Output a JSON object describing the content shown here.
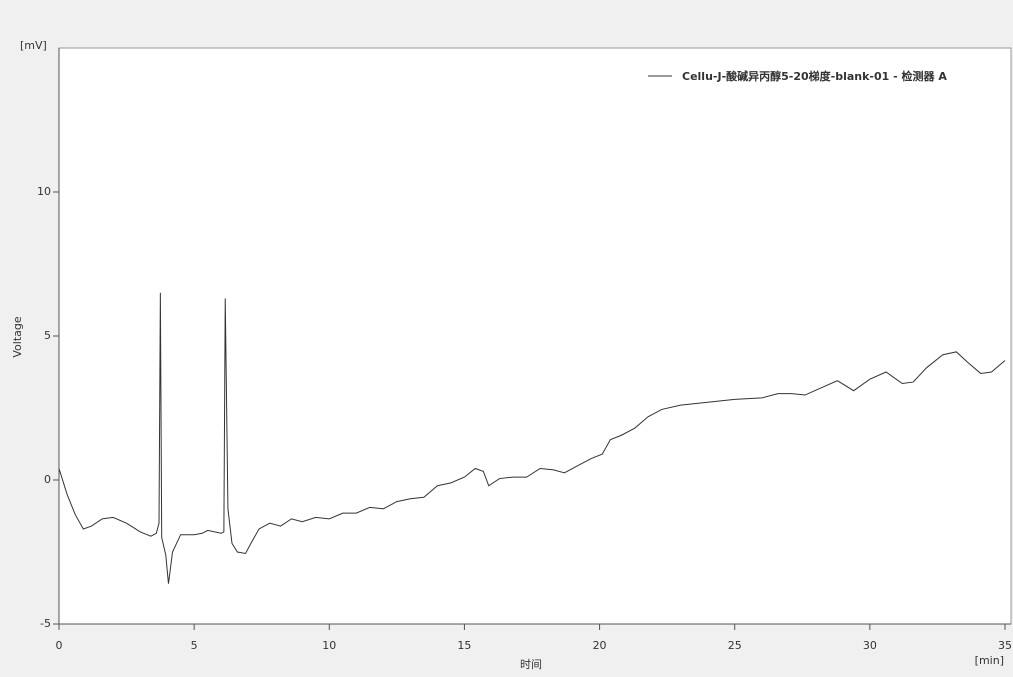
{
  "chart_data": {
    "type": "line",
    "y_unit": "[mV]",
    "x_unit": "[min]",
    "x_label": "时间",
    "y_label": "Voltage",
    "x": [
      0,
      0.3,
      0.6,
      0.9,
      1.2,
      1.6,
      2.0,
      2.5,
      3.0,
      3.4,
      3.6,
      3.7,
      3.75,
      3.8,
      3.95,
      4.05,
      4.2,
      4.5,
      5.0,
      5.3,
      5.5,
      6.0,
      6.1,
      6.15,
      6.25,
      6.4,
      6.6,
      6.9,
      7.1,
      7.4,
      7.8,
      8.2,
      8.6,
      9.0,
      9.5,
      10.0,
      10.5,
      11.0,
      11.5,
      12.0,
      12.5,
      13.0,
      13.5,
      14.0,
      14.5,
      15.0,
      15.4,
      15.7,
      15.9,
      16.3,
      16.8,
      17.3,
      17.8,
      18.3,
      18.7,
      19.2,
      19.7,
      20.1,
      20.4,
      20.8,
      21.3,
      21.8,
      22.3,
      23,
      24,
      25,
      26,
      26.6,
      27.1,
      27.6,
      28.2,
      28.8,
      29.4,
      30.0,
      30.6,
      31.2,
      31.6,
      32.1,
      32.7,
      33.2,
      33.6,
      34.1,
      34.5,
      35
    ],
    "series": [
      {
        "name": "Cellu-J-酸碱异丙醇5-20梯度-blank-01 - 检测器 A",
        "color": "#333333",
        "values": [
          0.4,
          -0.5,
          -1.2,
          -1.7,
          -1.6,
          -1.35,
          -1.3,
          -1.5,
          -1.8,
          -1.95,
          -1.85,
          -1.5,
          6.5,
          -2.0,
          -2.6,
          -3.6,
          -2.5,
          -1.9,
          -1.9,
          -1.85,
          -1.75,
          -1.85,
          -1.8,
          6.3,
          -1.0,
          -2.2,
          -2.5,
          -2.55,
          -2.2,
          -1.7,
          -1.5,
          -1.6,
          -1.35,
          -1.45,
          -1.3,
          -1.35,
          -1.15,
          -1.15,
          -0.95,
          -1.0,
          -0.75,
          -0.65,
          -0.6,
          -0.2,
          -0.1,
          0.1,
          0.4,
          0.3,
          -0.2,
          0.05,
          0.1,
          0.1,
          0.4,
          0.35,
          0.25,
          0.5,
          0.75,
          0.9,
          1.4,
          1.55,
          1.8,
          2.2,
          2.45,
          2.6,
          2.7,
          2.8,
          2.85,
          3.0,
          3.0,
          2.95,
          3.2,
          3.45,
          3.1,
          3.5,
          3.75,
          3.35,
          3.4,
          3.9,
          4.35,
          4.45,
          4.1,
          3.7,
          3.75,
          4.15
        ]
      }
    ],
    "xlim": [
      0,
      35
    ],
    "xticks": [
      0,
      5,
      10,
      15,
      20,
      25,
      30,
      35
    ],
    "ylim": [
      -5,
      15
    ],
    "yticks": [
      -5,
      0,
      5,
      10
    ]
  }
}
